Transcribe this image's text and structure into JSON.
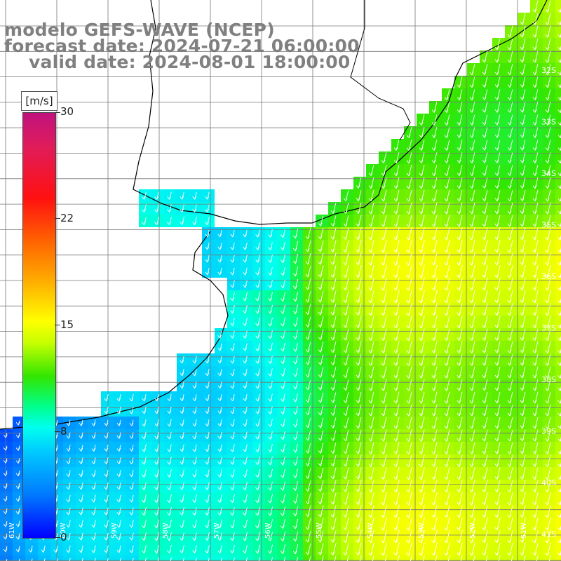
{
  "title": {
    "model": "modelo GEFS-WAVE (NCEP)",
    "forecast": "forecast date: 2024-07-21 06:00:00",
    "valid": "valid date: 2024-08-01 18:00:00"
  },
  "colorbar": {
    "unit": "[m/s]",
    "ticks": [
      "30",
      "22",
      "15",
      "8",
      "0"
    ],
    "colors": [
      "#c0127e",
      "#ff1010",
      "#ff6a00",
      "#ffff00",
      "#32e600",
      "#00ffee",
      "#0078ff",
      "#0000ff"
    ]
  },
  "axes": {
    "lat_labels": [
      "32S",
      "33S",
      "34S",
      "35S",
      "36S",
      "37S",
      "38S",
      "39S",
      "40S",
      "41S"
    ],
    "lon_labels": [
      "61W",
      "60W",
      "59W",
      "58W",
      "57W",
      "56W",
      "55W",
      "54W",
      "53W",
      "52W",
      "51W"
    ]
  },
  "colors": {
    "land": "#ffffff",
    "coast": "#000000",
    "grid": "#777777",
    "arrow": "#ffffff"
  }
}
